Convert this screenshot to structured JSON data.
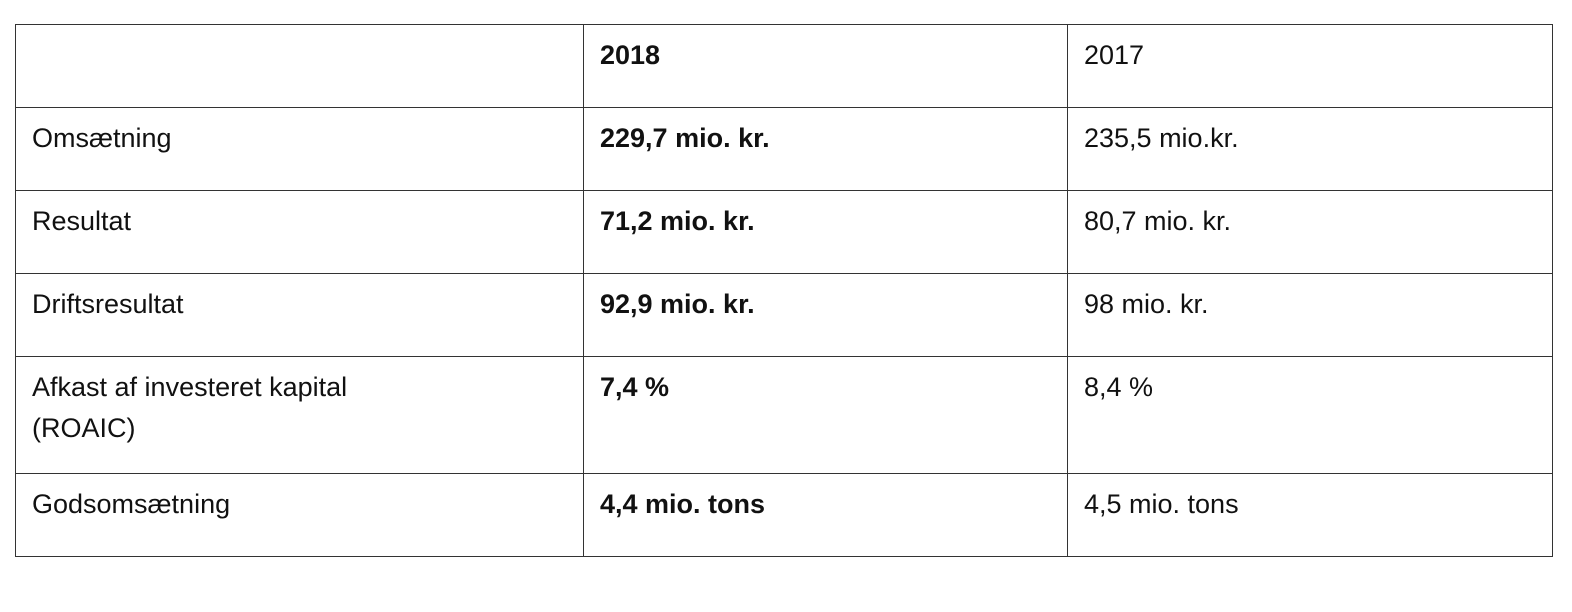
{
  "table": {
    "header": [
      "2018",
      "2017"
    ],
    "rows": [
      [
        "Omsætning",
        "229,7 mio. kr.",
        "235,5 mio.kr."
      ],
      [
        "Resultat",
        "71,2 mio. kr.",
        "80,7 mio. kr."
      ],
      [
        "Driftsresultat",
        "92,9 mio. kr.",
        "98 mio. kr."
      ],
      [
        "Afkast af investeret kapital (ROAIC)",
        "7,4 %",
        "8,4 %"
      ],
      [
        "Godsomsætning",
        "4,4 mio. tons",
        "4,5 mio. tons"
      ]
    ]
  }
}
